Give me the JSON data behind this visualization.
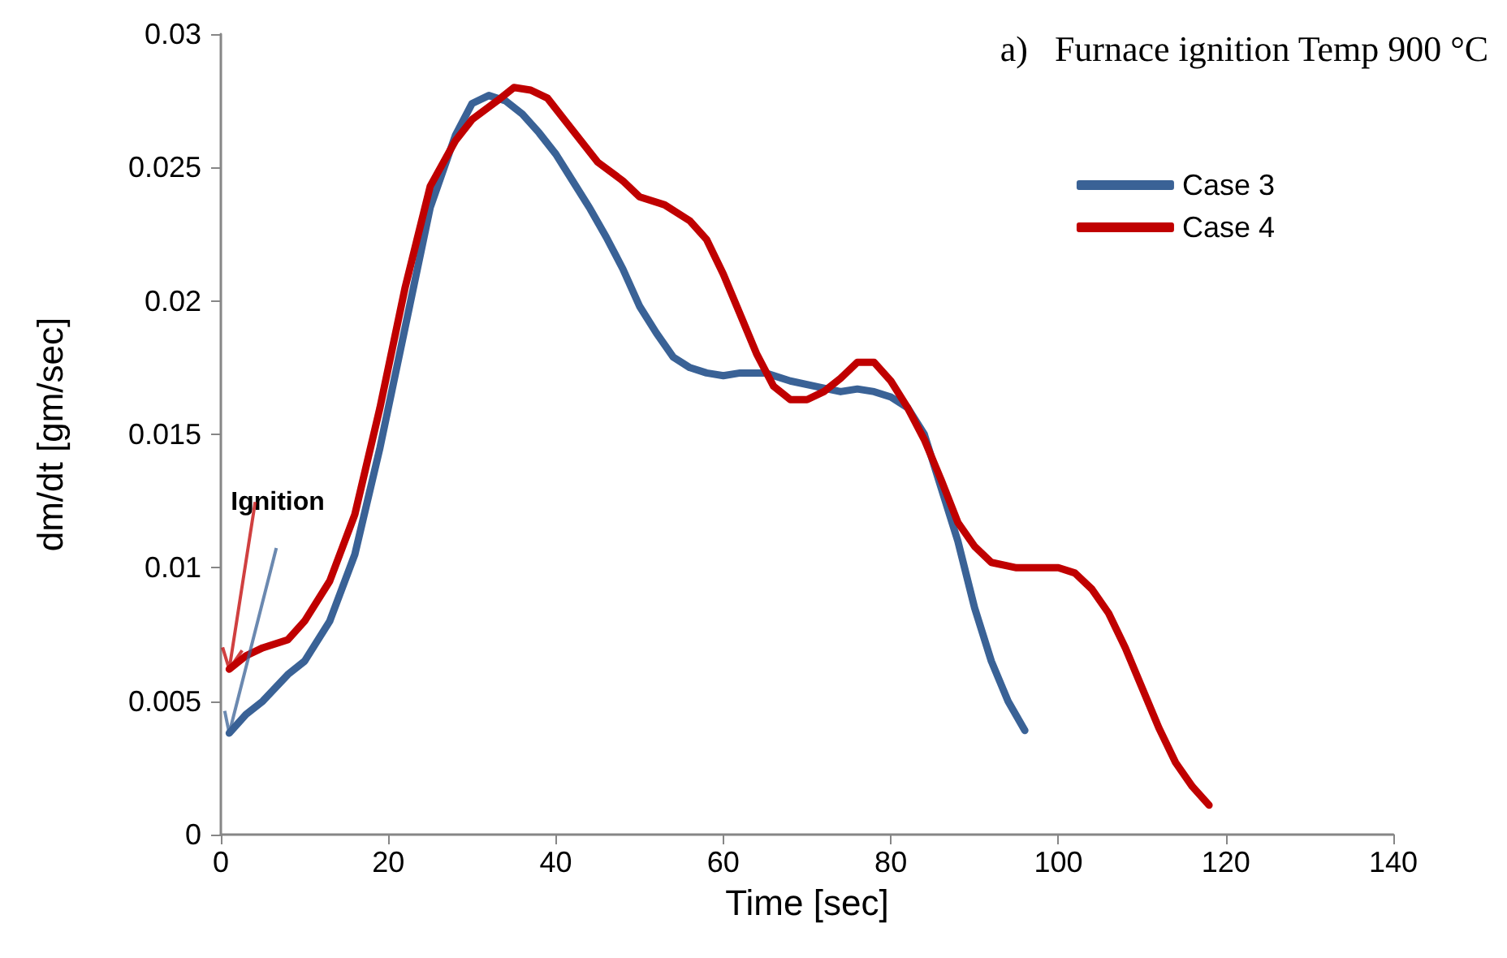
{
  "chart_data": {
    "type": "line",
    "title": "a)   Furnace ignition Temp 900 °C",
    "xlabel": "Time [sec]",
    "ylabel": "dm/dt [gm/sec]",
    "annotations": [
      {
        "text": "Ignition",
        "x": 1,
        "y": 0.0062
      }
    ],
    "xlim": [
      0,
      140
    ],
    "xticks": [
      0,
      20,
      40,
      60,
      80,
      100,
      120,
      140
    ],
    "ylim": [
      0,
      0.03
    ],
    "yticks": [
      0,
      0.005,
      0.01,
      0.015,
      0.02,
      0.025,
      0.03
    ],
    "grid": false,
    "legend": "top right",
    "marker": "none",
    "line_style": "solid",
    "series": [
      {
        "name": "Case 3",
        "color": "#3a6296",
        "x": [
          1,
          3,
          5,
          8,
          10,
          13,
          16,
          19,
          22,
          25,
          28,
          30,
          32,
          34,
          36,
          38,
          40,
          42,
          44,
          46,
          48,
          50,
          52,
          54,
          56,
          58,
          60,
          62,
          65,
          68,
          71,
          74,
          76,
          78,
          80,
          82,
          84,
          86,
          88,
          90,
          92,
          94,
          96
        ],
        "values": [
          0.0038,
          0.0045,
          0.005,
          0.006,
          0.0065,
          0.008,
          0.0105,
          0.0145,
          0.019,
          0.0235,
          0.0262,
          0.0274,
          0.0277,
          0.0275,
          0.027,
          0.0263,
          0.0255,
          0.0245,
          0.0235,
          0.0224,
          0.0212,
          0.0198,
          0.0188,
          0.0179,
          0.0175,
          0.0173,
          0.0172,
          0.0173,
          0.0173,
          0.017,
          0.0168,
          0.0166,
          0.0167,
          0.0166,
          0.0164,
          0.016,
          0.015,
          0.013,
          0.011,
          0.0085,
          0.0065,
          0.005,
          0.0039
        ]
      },
      {
        "name": "Case 4",
        "color": "#c00000",
        "x": [
          1,
          3,
          5,
          8,
          10,
          13,
          16,
          19,
          22,
          25,
          28,
          30,
          33,
          35,
          37,
          39,
          41,
          43,
          45,
          48,
          50,
          53,
          56,
          58,
          60,
          62,
          64,
          66,
          68,
          70,
          72,
          74,
          76,
          78,
          80,
          82,
          84,
          86,
          88,
          90,
          92,
          95,
          100,
          102,
          104,
          106,
          108,
          110,
          112,
          114,
          116,
          118
        ],
        "values": [
          0.0062,
          0.0067,
          0.007,
          0.0073,
          0.008,
          0.0095,
          0.012,
          0.016,
          0.0205,
          0.0243,
          0.026,
          0.0268,
          0.0275,
          0.028,
          0.0279,
          0.0276,
          0.0268,
          0.026,
          0.0252,
          0.0245,
          0.0239,
          0.0236,
          0.023,
          0.0223,
          0.021,
          0.0195,
          0.018,
          0.0168,
          0.0163,
          0.0163,
          0.0166,
          0.0171,
          0.0177,
          0.0177,
          0.017,
          0.016,
          0.0148,
          0.0133,
          0.0117,
          0.0108,
          0.0102,
          0.01,
          0.01,
          0.0098,
          0.0092,
          0.0083,
          0.007,
          0.0055,
          0.004,
          0.0027,
          0.0018,
          0.0011
        ]
      }
    ]
  }
}
